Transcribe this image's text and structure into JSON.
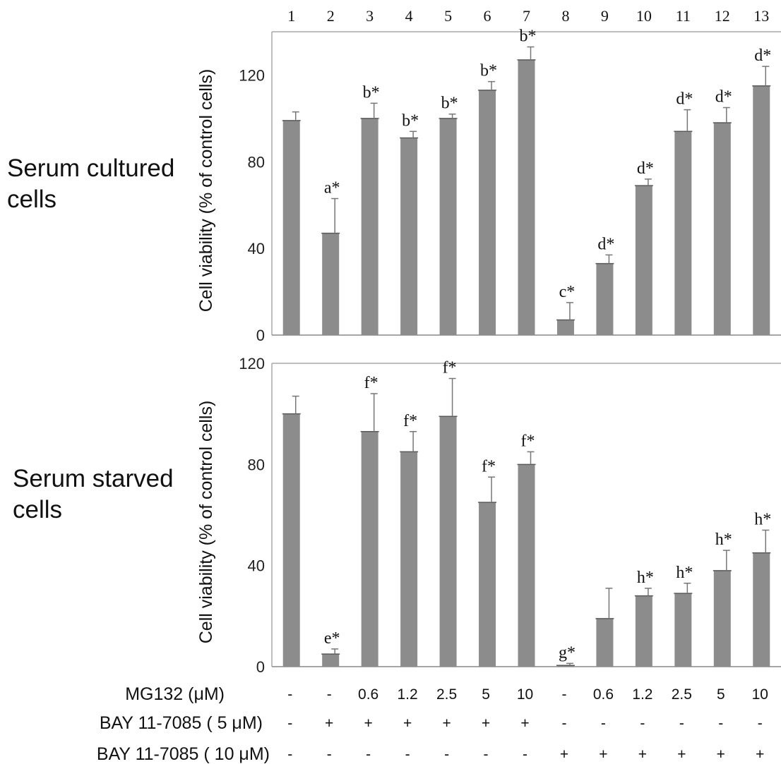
{
  "chart_data": [
    {
      "type": "bar",
      "row_label": "Serum cultured cells",
      "ylabel": "Cell viability (% of control cells)",
      "ylim": [
        0,
        140
      ],
      "yticks": [
        "0",
        "40",
        "80",
        "120"
      ],
      "ytick_values": [
        0,
        40,
        80,
        120
      ],
      "categories": [
        "1",
        "2",
        "3",
        "4",
        "5",
        "6",
        "7",
        "8",
        "9",
        "10",
        "11",
        "12",
        "13"
      ],
      "values": [
        99,
        47,
        100,
        91,
        100,
        113,
        127,
        7,
        33,
        69,
        94,
        98,
        115
      ],
      "errors": [
        4,
        16,
        7,
        3,
        2,
        4,
        6,
        8,
        4,
        3,
        10,
        7,
        9
      ],
      "annotations": [
        "",
        "a*",
        "b*",
        "b*",
        "b*",
        "b*",
        "b*",
        "c*",
        "d*",
        "d*",
        "d*",
        "d*",
        "d*"
      ],
      "bar_color": "#8c8c8c"
    },
    {
      "type": "bar",
      "row_label": "Serum starved cells",
      "ylabel": "Cell viability (% of control cells)",
      "ylim": [
        0,
        120
      ],
      "yticks": [
        "0",
        "40",
        "80",
        "120"
      ],
      "ytick_values": [
        0,
        40,
        80,
        120
      ],
      "categories": [
        "1",
        "2",
        "3",
        "4",
        "5",
        "6",
        "7",
        "8",
        "9",
        "10",
        "11",
        "12",
        "13"
      ],
      "values": [
        100,
        5,
        93,
        85,
        99,
        65,
        80,
        0.5,
        19,
        28,
        29,
        38,
        45
      ],
      "errors": [
        7,
        2,
        15,
        8,
        15,
        10,
        5,
        0.8,
        12,
        3,
        4,
        8,
        9
      ],
      "annotations": [
        "",
        "e*",
        "f*",
        "f*",
        "f*",
        "f*",
        "f*",
        "g*",
        "",
        "h*",
        "h*",
        "h*",
        "h*"
      ],
      "bar_color": "#8c8c8c"
    }
  ],
  "treatment_table": [
    {
      "label": "MG132 (μM)",
      "values": [
        "-",
        "-",
        "0.6",
        "1.2",
        "2.5",
        "5",
        "10",
        "-",
        "0.6",
        "1.2",
        "2.5",
        "5",
        "10"
      ]
    },
    {
      "label": "BAY 11-7085 ( 5 μM)",
      "values": [
        "-",
        "+",
        "+",
        "+",
        "+",
        "+",
        "+",
        "-",
        "-",
        "-",
        "-",
        "-",
        "-"
      ]
    },
    {
      "label": "BAY 11-7085 ( 10 μM)",
      "values": [
        "-",
        "-",
        "-",
        "-",
        "-",
        "-",
        "-",
        "+",
        "+",
        "+",
        "+",
        "+",
        "+"
      ]
    }
  ]
}
